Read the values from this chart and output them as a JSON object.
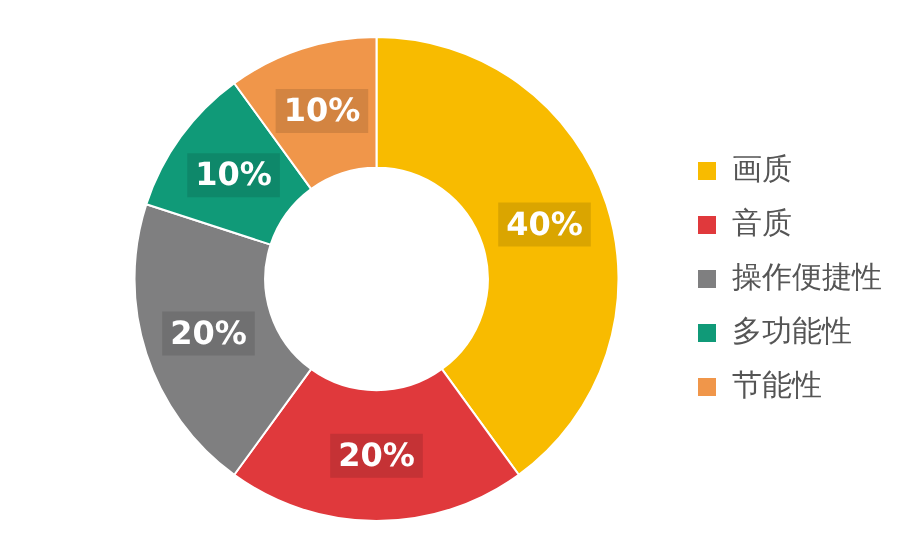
{
  "chart_data": {
    "type": "donut",
    "categories": [
      "画质",
      "音质",
      "操作便捷性",
      "多功能性",
      "节能性"
    ],
    "values": [
      40,
      20,
      20,
      10,
      10
    ],
    "colors": [
      "#f8bb00",
      "#e0393c",
      "#7f7f80",
      "#109a78",
      "#f0964a"
    ],
    "value_labels": [
      "40%",
      "20%",
      "20%",
      "10%",
      "10%"
    ],
    "legend": "right"
  }
}
